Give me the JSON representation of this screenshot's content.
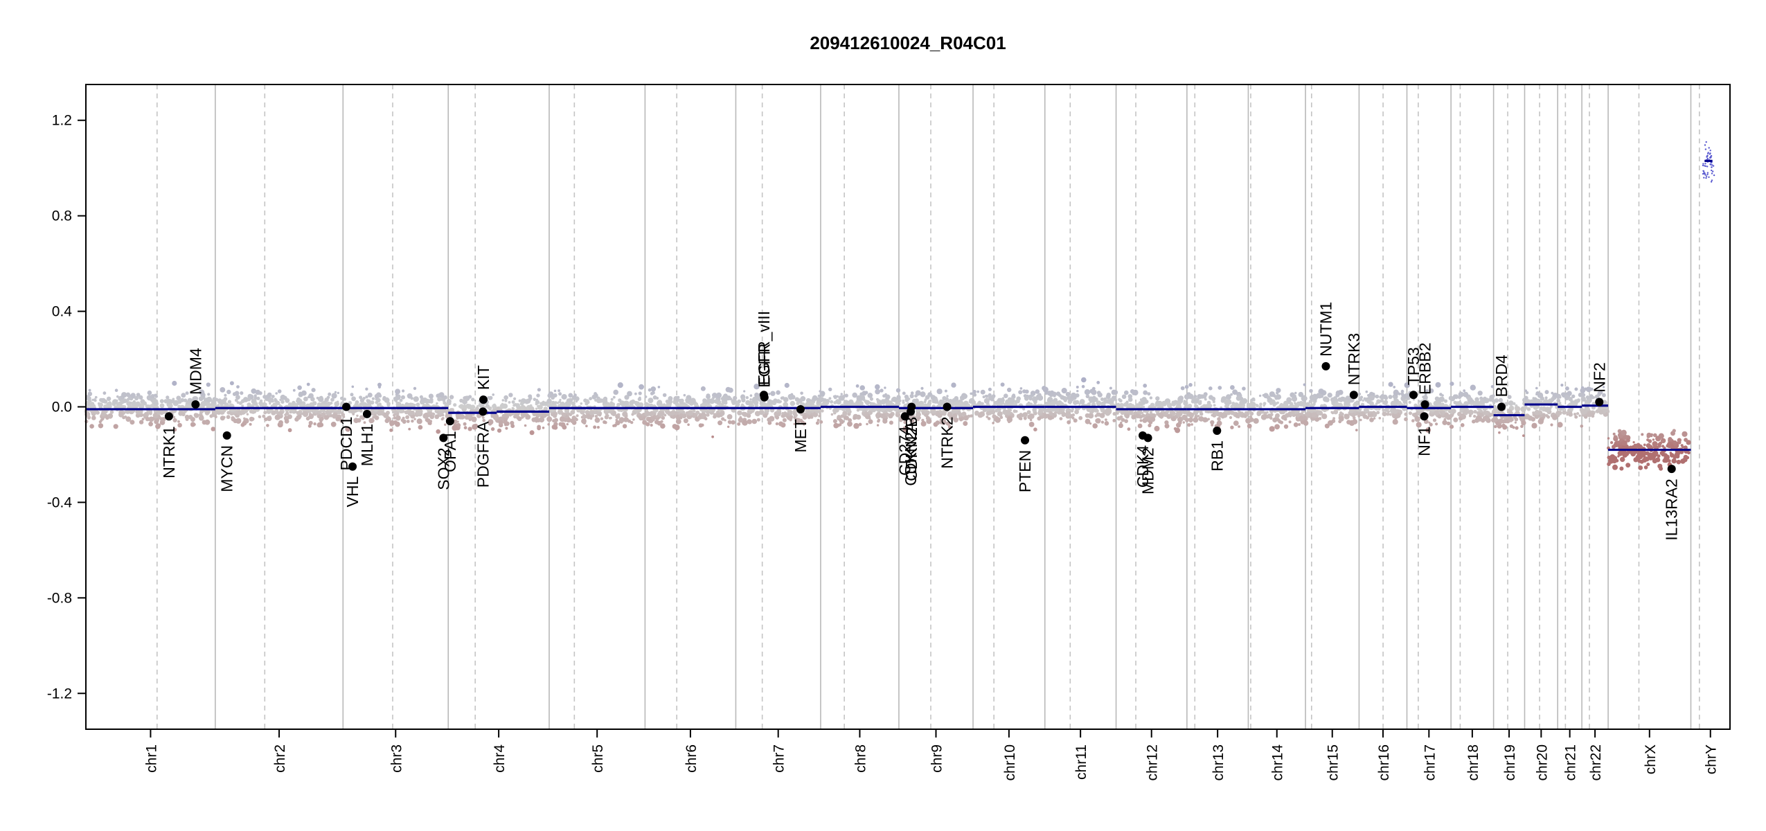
{
  "chart_data": {
    "type": "scatter",
    "title": "209412610024_R04C01",
    "xlabel": "",
    "ylabel": "",
    "ylim": [
      -1.35,
      1.35
    ],
    "yticks": [
      "1.2",
      "0.8",
      "0.4",
      "0.0",
      "-0.4",
      "-0.8",
      "-1.2"
    ],
    "grid": "vertical chromosome boundaries (solid) and centromeres (dashed)",
    "colors": {
      "gain": "#9a9ec4",
      "loss": "#b07070",
      "segment": "#00008b",
      "gene_point": "#000000",
      "boundary": "#b8b8b8"
    },
    "chromosomes": [
      {
        "name": "chr1",
        "start": 0.0,
        "end": 0.0787,
        "cent": 0.0433,
        "seg": [
          [
            0.0,
            1.0,
            -0.01
          ]
        ]
      },
      {
        "name": "chr2",
        "start": 0.0787,
        "end": 0.1564,
        "cent": 0.1088,
        "seg": [
          [
            0.0,
            1.0,
            -0.005
          ]
        ]
      },
      {
        "name": "chr3",
        "start": 0.1564,
        "end": 0.2204,
        "cent": 0.1866,
        "seg": [
          [
            0.0,
            1.0,
            -0.005
          ]
        ]
      },
      {
        "name": "chr4",
        "start": 0.2204,
        "end": 0.2818,
        "cent": 0.2368,
        "seg": [
          [
            0.0,
            0.48,
            -0.025
          ],
          [
            0.48,
            1.0,
            -0.02
          ]
        ]
      },
      {
        "name": "chr5",
        "start": 0.2818,
        "end": 0.3401,
        "cent": 0.2971,
        "seg": [
          [
            0.0,
            1.0,
            -0.005
          ]
        ]
      },
      {
        "name": "chr6",
        "start": 0.3401,
        "end": 0.3953,
        "cent": 0.3594,
        "seg": [
          [
            0.0,
            1.0,
            -0.005
          ]
        ]
      },
      {
        "name": "chr7",
        "start": 0.3953,
        "end": 0.4469,
        "cent": 0.4114,
        "seg": [
          [
            0.0,
            1.0,
            -0.005
          ]
        ]
      },
      {
        "name": "chr8",
        "start": 0.4469,
        "end": 0.4945,
        "cent": 0.4613,
        "seg": [
          [
            0.0,
            1.0,
            0.0
          ]
        ]
      },
      {
        "name": "chr9",
        "start": 0.4945,
        "end": 0.5396,
        "cent": 0.5139,
        "seg": [
          [
            0.0,
            1.0,
            -0.005
          ]
        ]
      },
      {
        "name": "chr10",
        "start": 0.5396,
        "end": 0.5833,
        "cent": 0.5523,
        "seg": [
          [
            0.0,
            1.0,
            0.0
          ]
        ]
      },
      {
        "name": "chr11",
        "start": 0.5833,
        "end": 0.6266,
        "cent": 0.5987,
        "seg": [
          [
            0.0,
            1.0,
            0.0
          ]
        ]
      },
      {
        "name": "chr12",
        "start": 0.6266,
        "end": 0.6697,
        "cent": 0.6386,
        "seg": [
          [
            0.0,
            1.0,
            -0.01
          ]
        ]
      },
      {
        "name": "chr13",
        "start": 0.6697,
        "end": 0.707,
        "cent": 0.6745,
        "seg": [
          [
            0.0,
            1.0,
            -0.01
          ]
        ]
      },
      {
        "name": "chr14",
        "start": 0.707,
        "end": 0.7418,
        "cent": 0.7085,
        "seg": [
          [
            0.0,
            1.0,
            -0.01
          ]
        ]
      },
      {
        "name": "chr15",
        "start": 0.7418,
        "end": 0.7744,
        "cent": 0.7455,
        "seg": [
          [
            0.0,
            1.0,
            -0.005
          ]
        ]
      },
      {
        "name": "chr16",
        "start": 0.7744,
        "end": 0.8035,
        "cent": 0.789,
        "seg": [
          [
            0.0,
            1.0,
            0.0
          ]
        ]
      },
      {
        "name": "chr17",
        "start": 0.8035,
        "end": 0.8303,
        "cent": 0.8104,
        "seg": [
          [
            0.0,
            1.0,
            -0.005
          ]
        ]
      },
      {
        "name": "chr18",
        "start": 0.8303,
        "end": 0.8562,
        "cent": 0.8359,
        "seg": [
          [
            0.0,
            1.0,
            0.0
          ]
        ]
      },
      {
        "name": "chr19",
        "start": 0.8562,
        "end": 0.8751,
        "cent": 0.8648,
        "seg": [
          [
            0.0,
            1.0,
            -0.035
          ]
        ]
      },
      {
        "name": "chr20",
        "start": 0.8751,
        "end": 0.8952,
        "cent": 0.8842,
        "seg": [
          [
            0.0,
            1.0,
            0.01
          ]
        ]
      },
      {
        "name": "chr21",
        "start": 0.8952,
        "end": 0.9099,
        "cent": 0.8999,
        "seg": [
          [
            0.0,
            1.0,
            0.0
          ]
        ]
      },
      {
        "name": "chr22",
        "start": 0.9099,
        "end": 0.9259,
        "cent": 0.9145,
        "seg": [
          [
            0.0,
            1.0,
            0.005
          ]
        ]
      },
      {
        "name": "chrX",
        "start": 0.9259,
        "end": 0.9762,
        "cent": 0.9446,
        "seg": [
          [
            0.0,
            1.0,
            -0.18
          ]
        ]
      },
      {
        "name": "chrY",
        "start": 0.9762,
        "end": 1.0,
        "cent": 0.9814,
        "seg": [
          [
            0.35,
            0.55,
            1.03
          ]
        ]
      }
    ],
    "genes": [
      {
        "label": "NTRK1",
        "x": 0.0505,
        "y": -0.04,
        "side": "below"
      },
      {
        "label": "MDM4",
        "x": 0.0667,
        "y": 0.01,
        "side": "above"
      },
      {
        "label": "MYCN",
        "x": 0.0858,
        "y": -0.12,
        "side": "below"
      },
      {
        "label": "VHL",
        "x": 0.1622,
        "y": -0.25,
        "side": "below"
      },
      {
        "label": "PDCD1",
        "x": 0.1584,
        "y": 0.0,
        "side": "below"
      },
      {
        "label": "MLH1",
        "x": 0.171,
        "y": -0.03,
        "side": "below"
      },
      {
        "label": "SOX2",
        "x": 0.2175,
        "y": -0.13,
        "side": "below"
      },
      {
        "label": "OPA1",
        "x": 0.2215,
        "y": -0.06,
        "side": "below"
      },
      {
        "label": "PDGFRA",
        "x": 0.2415,
        "y": -0.02,
        "side": "below"
      },
      {
        "label": "KIT",
        "x": 0.2418,
        "y": 0.03,
        "side": "above"
      },
      {
        "label": "EGFR_vIII",
        "x": 0.4124,
        "y": 0.05,
        "side": "above"
      },
      {
        "label": "EGFR",
        "x": 0.4127,
        "y": 0.04,
        "side": "above"
      },
      {
        "label": "MET",
        "x": 0.4347,
        "y": -0.01,
        "side": "below"
      },
      {
        "label": "CD274",
        "x": 0.4982,
        "y": -0.04,
        "side": "below"
      },
      {
        "label": "CDKN2A",
        "x": 0.5017,
        "y": -0.02,
        "side": "below"
      },
      {
        "label": "CDKN2B",
        "x": 0.5022,
        "y": 0.0,
        "side": "below"
      },
      {
        "label": "NTRK2",
        "x": 0.5238,
        "y": 0.0,
        "side": "below"
      },
      {
        "label": "PTEN",
        "x": 0.5712,
        "y": -0.14,
        "side": "below"
      },
      {
        "label": "CDK4",
        "x": 0.6428,
        "y": -0.12,
        "side": "below"
      },
      {
        "label": "MDM2",
        "x": 0.646,
        "y": -0.13,
        "side": "below"
      },
      {
        "label": "RB1",
        "x": 0.688,
        "y": -0.1,
        "side": "below"
      },
      {
        "label": "NUTM1",
        "x": 0.7542,
        "y": 0.17,
        "side": "above"
      },
      {
        "label": "NTRK3",
        "x": 0.7712,
        "y": 0.05,
        "side": "above"
      },
      {
        "label": "TP53",
        "x": 0.8075,
        "y": 0.05,
        "side": "above"
      },
      {
        "label": "ERBB2",
        "x": 0.8145,
        "y": 0.01,
        "side": "above"
      },
      {
        "label": "NF1",
        "x": 0.814,
        "y": -0.04,
        "side": "below"
      },
      {
        "label": "BRD4",
        "x": 0.861,
        "y": 0.0,
        "side": "above"
      },
      {
        "label": "NF2",
        "x": 0.9205,
        "y": 0.02,
        "side": "above"
      },
      {
        "label": "IL13RA2",
        "x": 0.9645,
        "y": -0.26,
        "side": "below"
      }
    ]
  }
}
